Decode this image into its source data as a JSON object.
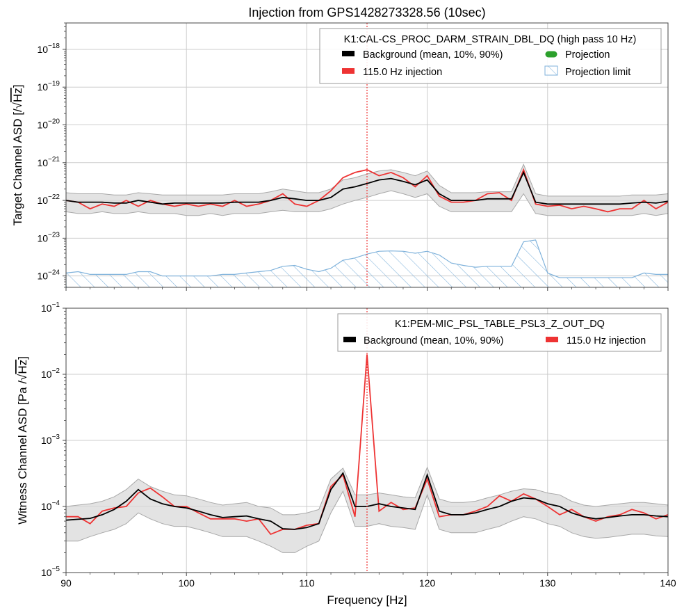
{
  "figure": {
    "title": "Injection from GPS1428273328.56 (10sec)",
    "xlabel": "Frequency [Hz]"
  },
  "chart_data": [
    {
      "type": "line",
      "name": "target",
      "ylabel_main": "Target Channel ASD [/",
      "ylabel_unit": "Hz",
      "ylabel_close": "]",
      "yscale": "log",
      "xlim": [
        90,
        140
      ],
      "ylim": [
        5e-25,
        5e-18
      ],
      "yticks": [
        -24,
        -23,
        -22,
        -21,
        -20,
        -19,
        -18
      ],
      "grid": true,
      "legend": {
        "placement": "top-right",
        "title": "K1:CAL-CS_PROC_DARM_STRAIN_DBL_DQ (high pass 10 Hz)",
        "entries": [
          {
            "label": "Background (mean, 10%, 90%)",
            "color": "#000000",
            "kind": "box"
          },
          {
            "label": "Projection",
            "color": "#2ca02c",
            "kind": "dot"
          },
          {
            "label": "115.0 Hz injection",
            "color": "#ee3333",
            "kind": "box"
          },
          {
            "label": "Projection limit",
            "color": "#7fb2db",
            "kind": "hatch"
          }
        ]
      },
      "injection_line_x": 115,
      "x": [
        90,
        91,
        92,
        93,
        94,
        95,
        96,
        97,
        98,
        99,
        100,
        101,
        102,
        103,
        104,
        105,
        106,
        107,
        108,
        109,
        110,
        111,
        112,
        113,
        114,
        115,
        116,
        117,
        118,
        119,
        120,
        121,
        122,
        123,
        124,
        125,
        126,
        127,
        128,
        129,
        130,
        131,
        132,
        133,
        134,
        135,
        136,
        137,
        138,
        139,
        140
      ],
      "background_mean": [
        1e-22,
        9e-23,
        9e-23,
        9e-23,
        8.5e-23,
        8.5e-23,
        1e-22,
        9e-23,
        8e-23,
        8.5e-23,
        8.5e-23,
        8.5e-23,
        8.5e-23,
        8.5e-23,
        9e-23,
        9e-23,
        9e-23,
        1e-22,
        1.2e-22,
        1.1e-22,
        1e-22,
        1e-22,
        1.2e-22,
        2e-22,
        2.3e-22,
        2.8e-22,
        3.5e-22,
        3.8e-22,
        3.2e-22,
        2.6e-22,
        3.5e-22,
        1.5e-22,
        1e-22,
        1e-22,
        1e-22,
        1.1e-22,
        1.1e-22,
        1.1e-22,
        5.5e-22,
        9e-23,
        8e-23,
        8e-23,
        8e-23,
        8e-23,
        8e-23,
        8e-23,
        8e-23,
        8.5e-23,
        9e-23,
        8.5e-23,
        9.5e-23
      ],
      "background_p10": [
        5e-23,
        4.5e-23,
        4.5e-23,
        5e-23,
        4.5e-23,
        4.5e-23,
        5e-23,
        4.5e-23,
        4.5e-23,
        4.5e-23,
        4e-23,
        4e-23,
        4.5e-23,
        4e-23,
        4.5e-23,
        4.5e-23,
        4.5e-23,
        5e-23,
        5.5e-23,
        5e-23,
        5e-23,
        5e-23,
        6e-23,
        8e-23,
        1e-22,
        1.2e-22,
        1.5e-22,
        1.8e-22,
        1.5e-22,
        1.2e-22,
        1.5e-22,
        7e-23,
        5e-23,
        5e-23,
        5e-23,
        5e-23,
        5e-23,
        5e-23,
        1.5e-22,
        4.5e-23,
        4e-23,
        4e-23,
        4e-23,
        4e-23,
        4e-23,
        4e-23,
        4e-23,
        4e-23,
        4.5e-23,
        4e-23,
        4.5e-23
      ],
      "background_p90": [
        1.6e-22,
        1.5e-22,
        1.5e-22,
        1.5e-22,
        1.4e-22,
        1.4e-22,
        1.6e-22,
        1.5e-22,
        1.4e-22,
        1.4e-22,
        1.4e-22,
        1.4e-22,
        1.4e-22,
        1.4e-22,
        1.5e-22,
        1.5e-22,
        1.5e-22,
        1.7e-22,
        2e-22,
        1.8e-22,
        1.6e-22,
        1.6e-22,
        2e-22,
        3.5e-22,
        4e-22,
        5e-22,
        6e-22,
        6.5e-22,
        5.5e-22,
        4.5e-22,
        6e-22,
        2.5e-22,
        1.6e-22,
        1.6e-22,
        1.6e-22,
        1.7e-22,
        1.7e-22,
        1.7e-22,
        9e-22,
        1.5e-22,
        1.3e-22,
        1.3e-22,
        1.3e-22,
        1.3e-22,
        1.3e-22,
        1.3e-22,
        1.3e-22,
        1.4e-22,
        1.4e-22,
        1.4e-22,
        1.5e-22
      ],
      "injection": [
        1e-22,
        9e-23,
        6e-23,
        8e-23,
        7e-23,
        1e-22,
        7e-23,
        1e-22,
        8e-23,
        7e-23,
        8e-23,
        7e-23,
        8e-23,
        7e-23,
        1e-22,
        7e-23,
        8e-23,
        1e-22,
        1.5e-22,
        8e-23,
        7e-23,
        1e-22,
        1.8e-22,
        4e-22,
        5.5e-22,
        6.5e-22,
        4.5e-22,
        5.5e-22,
        4e-22,
        2.3e-22,
        4.5e-22,
        1.3e-22,
        9e-23,
        9e-23,
        1e-22,
        1.5e-22,
        1.6e-22,
        1e-22,
        6.5e-22,
        8e-23,
        7e-23,
        7.5e-23,
        6e-23,
        7e-23,
        6e-23,
        5e-23,
        6e-23,
        6e-23,
        1e-22,
        6e-23,
        9e-23
      ],
      "projection_limit": [
        1.2e-24,
        1.3e-24,
        1.1e-24,
        1.1e-24,
        1.1e-24,
        1.1e-24,
        1.3e-24,
        1.3e-24,
        1e-24,
        1e-24,
        1e-24,
        1e-24,
        1e-24,
        1.1e-24,
        1.1e-24,
        1.2e-24,
        1.3e-24,
        1.4e-24,
        1.8e-24,
        1.9e-24,
        1.5e-24,
        1.3e-24,
        1.6e-24,
        2.6e-24,
        3e-24,
        3.8e-24,
        4.5e-24,
        4.6e-24,
        4.5e-24,
        4e-24,
        4.5e-24,
        3.6e-24,
        2.2e-24,
        1.9e-24,
        1.7e-24,
        1.8e-24,
        1.8e-24,
        1.8e-24,
        8e-24,
        9e-24,
        1.2e-24,
        9e-25,
        9e-25,
        9e-25,
        9e-25,
        9e-25,
        9e-25,
        9e-25,
        1.2e-24,
        1.1e-24,
        1.1e-24
      ]
    },
    {
      "type": "line",
      "name": "witness",
      "ylabel_main": "Witness Channel ASD [Pa /",
      "ylabel_unit": "Hz",
      "ylabel_close": "]",
      "yscale": "log",
      "xlim": [
        90,
        140
      ],
      "ylim": [
        1e-05,
        0.1
      ],
      "yticks": [
        -5,
        -4,
        -3,
        -2,
        -1
      ],
      "xticks": [
        90,
        100,
        110,
        120,
        130,
        140
      ],
      "grid": true,
      "legend": {
        "placement": "top-right",
        "title": "K1:PEM-MIC_PSL_TABLE_PSL3_Z_OUT_DQ",
        "entries": [
          {
            "label": "Background (mean, 10%, 90%)",
            "color": "#000000",
            "kind": "box"
          },
          {
            "label": "115.0 Hz injection",
            "color": "#ee3333",
            "kind": "box"
          }
        ]
      },
      "injection_line_x": 115,
      "x": [
        90,
        91,
        92,
        93,
        94,
        95,
        96,
        97,
        98,
        99,
        100,
        101,
        102,
        103,
        104,
        105,
        106,
        107,
        108,
        109,
        110,
        111,
        112,
        113,
        114,
        115,
        116,
        117,
        118,
        119,
        120,
        121,
        122,
        123,
        124,
        125,
        126,
        127,
        128,
        129,
        130,
        131,
        132,
        133,
        134,
        135,
        136,
        137,
        138,
        139,
        140
      ],
      "background_mean": [
        6.2e-05,
        6.4e-05,
        6.6e-05,
        7.5e-05,
        9e-05,
        0.00012,
        0.00018,
        0.00013,
        0.00011,
        0.0001,
        9.5e-05,
        8.5e-05,
        7.5e-05,
        6.8e-05,
        7e-05,
        7.2e-05,
        6.5e-05,
        6e-05,
        4.6e-05,
        4.5e-05,
        4.8e-05,
        5.5e-05,
        0.00018,
        0.00032,
        0.0001,
        0.0001,
        0.00011,
        0.0001,
        9.5e-05,
        9e-05,
        0.0003,
        8.5e-05,
        7.5e-05,
        7.5e-05,
        8e-05,
        9e-05,
        0.0001,
        0.00012,
        0.000135,
        0.00013,
        0.00011,
        0.0001,
        8e-05,
        7e-05,
        6.5e-05,
        6.8e-05,
        7.2e-05,
        7.5e-05,
        7.5e-05,
        7.2e-05,
        7e-05
      ],
      "background_p10": [
        3e-05,
        3e-05,
        3.5e-05,
        4e-05,
        4.5e-05,
        5.5e-05,
        8e-05,
        6.5e-05,
        5.5e-05,
        5e-05,
        5e-05,
        4.5e-05,
        4e-05,
        3.5e-05,
        3.5e-05,
        3.5e-05,
        3e-05,
        2.5e-05,
        2e-05,
        2e-05,
        2.5e-05,
        3e-05,
        8e-05,
        0.00017,
        5e-05,
        5e-05,
        5.5e-05,
        5e-05,
        4.8e-05,
        4.5e-05,
        0.00015,
        4.5e-05,
        4e-05,
        4e-05,
        4e-05,
        4.5e-05,
        5e-05,
        6e-05,
        7e-05,
        6.5e-05,
        5.5e-05,
        5e-05,
        4e-05,
        3.5e-05,
        3.3e-05,
        3.4e-05,
        3.6e-05,
        3.8e-05,
        3.8e-05,
        3.6e-05,
        3.5e-05
      ],
      "background_p90": [
        0.0001,
        0.000105,
        0.00011,
        0.00012,
        0.00014,
        0.00018,
        0.00026,
        0.0002,
        0.00017,
        0.00015,
        0.000145,
        0.00013,
        0.000115,
        0.000105,
        0.00011,
        0.000115,
        0.0001,
        9.5e-05,
        7.5e-05,
        7.5e-05,
        8e-05,
        9e-05,
        0.00026,
        0.00038,
        0.00015,
        0.00015,
        0.00016,
        0.00015,
        0.00014,
        0.000135,
        0.00039,
        0.00013,
        0.000115,
        0.000115,
        0.00012,
        0.000135,
        0.00015,
        0.00017,
        0.000185,
        0.00018,
        0.00016,
        0.00015,
        0.00012,
        0.000105,
        0.0001,
        0.000105,
        0.00011,
        0.000115,
        0.000115,
        0.00011,
        0.000105
      ],
      "injection": [
        7e-05,
        7e-05,
        5.5e-05,
        8.5e-05,
        9.5e-05,
        0.0001,
        0.00016,
        0.00019,
        0.00014,
        0.0001,
        0.0001,
        8e-05,
        6.5e-05,
        6.5e-05,
        6.5e-05,
        6e-05,
        6.5e-05,
        3.8e-05,
        4.5e-05,
        4.5e-05,
        5.2e-05,
        5.5e-05,
        0.0002,
        0.0003,
        7e-05,
        0.02,
        8.5e-05,
        0.000115,
        9e-05,
        9.5e-05,
        0.00026,
        7e-05,
        7.5e-05,
        7.5e-05,
        8.5e-05,
        0.0001,
        0.000145,
        0.00012,
        0.000155,
        0.00013,
        0.0001,
        7.5e-05,
        9e-05,
        7e-05,
        6e-05,
        7e-05,
        7.5e-05,
        9e-05,
        8e-05,
        6.5e-05,
        7.5e-05
      ]
    }
  ]
}
